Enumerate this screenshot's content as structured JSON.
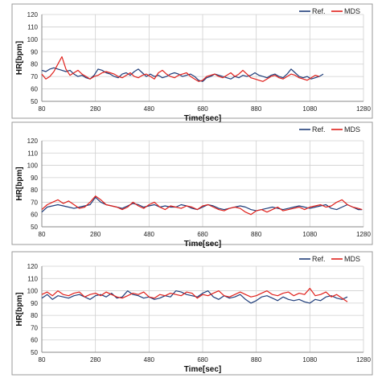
{
  "chart_data": [
    {
      "type": "line",
      "xlabel": "Time[sec]",
      "ylabel": "HR[bpm]",
      "xlim": [
        80,
        1280
      ],
      "ylim": [
        50,
        120
      ],
      "xticks": [
        80,
        280,
        480,
        680,
        880,
        1080,
        1280
      ],
      "yticks": [
        50,
        60,
        70,
        80,
        90,
        100,
        110,
        120
      ],
      "grid": true,
      "legend_position": "top-right",
      "series": [
        {
          "name": "Ref.",
          "color": "#1f3d7a",
          "x": [
            80,
            95,
            110,
            125,
            140,
            155,
            170,
            185,
            200,
            215,
            230,
            245,
            260,
            275,
            290,
            305,
            320,
            335,
            350,
            365,
            380,
            395,
            410,
            425,
            440,
            455,
            470,
            485,
            500,
            515,
            530,
            545,
            560,
            575,
            590,
            605,
            620,
            635,
            650,
            665,
            680,
            695,
            710,
            725,
            740,
            755,
            770,
            785,
            800,
            815,
            830,
            845,
            860,
            875,
            890,
            905,
            920,
            935,
            950,
            965,
            980,
            995,
            1010,
            1025,
            1040,
            1055,
            1070,
            1085,
            1100,
            1115,
            1130
          ],
          "y": [
            75,
            74,
            76,
            77,
            76,
            75,
            74,
            75,
            72,
            70,
            71,
            69,
            68,
            71,
            76,
            75,
            73,
            72,
            70,
            69,
            72,
            73,
            71,
            74,
            76,
            73,
            70,
            72,
            70,
            71,
            69,
            70,
            72,
            73,
            72,
            70,
            71,
            72,
            70,
            67,
            66,
            69,
            70,
            72,
            71,
            70,
            69,
            68,
            70,
            69,
            71,
            70,
            71,
            73,
            71,
            70,
            69,
            71,
            72,
            70,
            69,
            72,
            76,
            73,
            70,
            69,
            70,
            68,
            69,
            70,
            72
          ]
        },
        {
          "name": "MDS",
          "color": "#e0201b",
          "x": [
            80,
            95,
            110,
            125,
            140,
            155,
            170,
            185,
            200,
            215,
            230,
            245,
            260,
            275,
            290,
            305,
            320,
            335,
            350,
            365,
            380,
            395,
            410,
            425,
            440,
            455,
            470,
            485,
            500,
            515,
            530,
            545,
            560,
            575,
            590,
            605,
            620,
            635,
            650,
            665,
            680,
            695,
            710,
            725,
            740,
            755,
            770,
            785,
            800,
            815,
            830,
            845,
            860,
            875,
            890,
            905,
            920,
            935,
            950,
            965,
            980,
            995,
            1010,
            1025,
            1040,
            1055,
            1070,
            1085,
            1100,
            1115
          ],
          "y": [
            72,
            68,
            70,
            74,
            80,
            86,
            76,
            71,
            73,
            75,
            72,
            70,
            68,
            70,
            71,
            73,
            74,
            73,
            72,
            70,
            69,
            71,
            73,
            70,
            69,
            71,
            72,
            70,
            68,
            73,
            75,
            72,
            70,
            69,
            71,
            72,
            73,
            70,
            68,
            66,
            67,
            70,
            71,
            72,
            70,
            69,
            71,
            73,
            70,
            72,
            75,
            72,
            69,
            68,
            67,
            66,
            68,
            70,
            71,
            69,
            68,
            70,
            72,
            71,
            69,
            68,
            67,
            69,
            71,
            70
          ]
        }
      ]
    },
    {
      "type": "line",
      "xlabel": "Time[sec]",
      "ylabel": "HR[bpm]",
      "xlim": [
        80,
        1280
      ],
      "ylim": [
        50,
        120
      ],
      "xticks": [
        80,
        280,
        480,
        680,
        880,
        1080,
        1280
      ],
      "yticks": [
        50,
        60,
        70,
        80,
        90,
        100,
        110,
        120
      ],
      "grid": true,
      "legend_position": "top-right",
      "series": [
        {
          "name": "Ref.",
          "color": "#1f3d7a",
          "x": [
            80,
            100,
            120,
            140,
            160,
            180,
            200,
            220,
            240,
            260,
            280,
            300,
            320,
            340,
            360,
            380,
            400,
            420,
            440,
            460,
            480,
            500,
            520,
            540,
            560,
            580,
            600,
            620,
            640,
            660,
            680,
            700,
            720,
            740,
            760,
            780,
            800,
            820,
            840,
            860,
            880,
            900,
            920,
            940,
            960,
            980,
            1000,
            1020,
            1040,
            1060,
            1080,
            1100,
            1120,
            1140,
            1160,
            1180,
            1200,
            1220,
            1240,
            1260,
            1275
          ],
          "y": [
            62,
            66,
            67,
            68,
            67,
            66,
            65,
            66,
            67,
            68,
            74,
            70,
            68,
            67,
            66,
            65,
            67,
            69,
            68,
            66,
            67,
            68,
            66,
            67,
            66,
            66,
            68,
            67,
            65,
            64,
            66,
            68,
            67,
            65,
            64,
            65,
            66,
            67,
            66,
            64,
            63,
            64,
            65,
            66,
            65,
            64,
            65,
            66,
            67,
            66,
            65,
            66,
            67,
            68,
            65,
            64,
            66,
            68,
            66,
            64,
            64
          ]
        },
        {
          "name": "MDS",
          "color": "#e0201b",
          "x": [
            80,
            100,
            120,
            140,
            160,
            180,
            200,
            220,
            240,
            260,
            280,
            300,
            320,
            340,
            360,
            380,
            400,
            420,
            440,
            460,
            480,
            500,
            520,
            540,
            560,
            580,
            600,
            620,
            640,
            660,
            680,
            700,
            720,
            740,
            760,
            780,
            800,
            820,
            840,
            860,
            880,
            900,
            920,
            940,
            960,
            980,
            1000,
            1020,
            1040,
            1060,
            1080,
            1100,
            1120,
            1140,
            1160,
            1180,
            1200,
            1220,
            1240,
            1260,
            1275
          ],
          "y": [
            64,
            68,
            70,
            72,
            69,
            71,
            68,
            65,
            66,
            70,
            75,
            72,
            68,
            67,
            66,
            64,
            66,
            70,
            67,
            65,
            68,
            70,
            66,
            64,
            67,
            66,
            65,
            67,
            66,
            64,
            67,
            68,
            66,
            64,
            63,
            65,
            66,
            65,
            62,
            60,
            63,
            64,
            62,
            64,
            66,
            63,
            64,
            65,
            66,
            64,
            66,
            67,
            68,
            66,
            67,
            70,
            72,
            68,
            66,
            65,
            64
          ]
        }
      ]
    },
    {
      "type": "line",
      "xlabel": "Time[sec]",
      "ylabel": "HR[bpm]",
      "xlim": [
        80,
        1280
      ],
      "ylim": [
        50,
        120
      ],
      "xticks": [
        80,
        280,
        480,
        680,
        880,
        1080,
        1280
      ],
      "yticks": [
        50,
        60,
        70,
        80,
        90,
        100,
        110,
        120
      ],
      "grid": true,
      "legend_position": "top-right",
      "series": [
        {
          "name": "Ref.",
          "color": "#1f3d7a",
          "x": [
            80,
            100,
            120,
            140,
            160,
            180,
            200,
            220,
            240,
            260,
            280,
            300,
            320,
            340,
            360,
            380,
            400,
            420,
            440,
            460,
            480,
            500,
            520,
            540,
            560,
            580,
            600,
            620,
            640,
            660,
            680,
            700,
            720,
            740,
            760,
            780,
            800,
            820,
            840,
            860,
            880,
            900,
            920,
            940,
            960,
            980,
            1000,
            1020,
            1040,
            1060,
            1080,
            1100,
            1120,
            1140,
            1160,
            1180,
            1200,
            1220
          ],
          "y": [
            94,
            97,
            93,
            96,
            95,
            94,
            96,
            97,
            95,
            93,
            96,
            97,
            95,
            98,
            94,
            95,
            100,
            97,
            96,
            94,
            95,
            93,
            94,
            96,
            95,
            100,
            99,
            97,
            96,
            95,
            98,
            100,
            95,
            93,
            96,
            94,
            95,
            97,
            93,
            90,
            92,
            95,
            96,
            94,
            92,
            95,
            93,
            92,
            93,
            91,
            90,
            93,
            92,
            95,
            96,
            94,
            93,
            95
          ]
        },
        {
          "name": "MDS",
          "color": "#e0201b",
          "x": [
            80,
            100,
            120,
            140,
            160,
            180,
            200,
            220,
            240,
            260,
            280,
            300,
            320,
            340,
            360,
            380,
            400,
            420,
            440,
            460,
            480,
            500,
            520,
            540,
            560,
            580,
            600,
            620,
            640,
            660,
            680,
            700,
            720,
            740,
            760,
            780,
            800,
            820,
            840,
            860,
            880,
            900,
            920,
            940,
            960,
            980,
            1000,
            1020,
            1040,
            1060,
            1080,
            1100,
            1120,
            1140,
            1160,
            1180,
            1200,
            1220
          ],
          "y": [
            97,
            99,
            96,
            100,
            97,
            96,
            98,
            99,
            95,
            97,
            98,
            96,
            99,
            97,
            95,
            94,
            96,
            98,
            97,
            99,
            95,
            94,
            97,
            96,
            98,
            97,
            96,
            99,
            98,
            94,
            97,
            96,
            98,
            100,
            96,
            95,
            97,
            99,
            97,
            95,
            96,
            98,
            100,
            97,
            96,
            98,
            99,
            96,
            98,
            97,
            102,
            96,
            97,
            99,
            95,
            97,
            94,
            91
          ]
        }
      ]
    }
  ]
}
